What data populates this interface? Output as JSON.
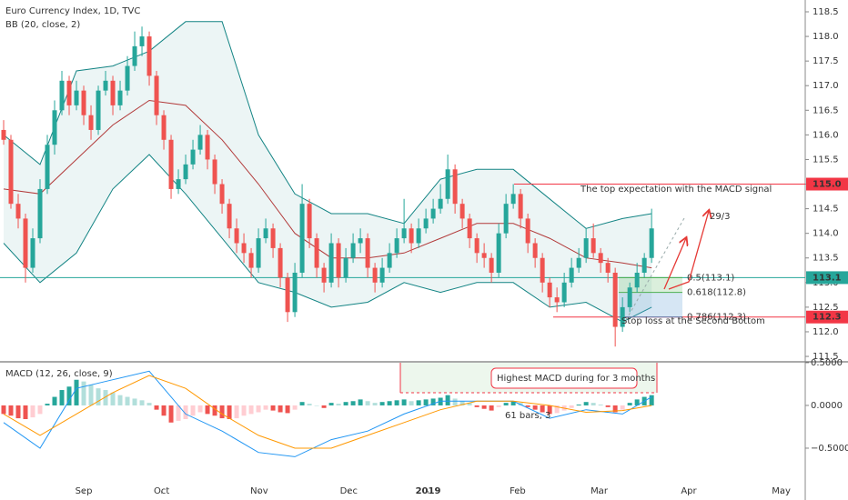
{
  "chart_data": [
    {
      "type": "candlestick",
      "title": "Euro Currency Index, 1D, TVC",
      "indicator": "BB (20, close, 2)",
      "up_color": "#26a69a",
      "down_color": "#ef5350",
      "xlim": [
        -0.5,
        110.1
      ],
      "xticks": [
        {
          "value": 11,
          "label": "Sep"
        },
        {
          "value": 21.7,
          "label": "Oct"
        },
        {
          "value": 35.1,
          "label": "Nov"
        },
        {
          "value": 47.4,
          "label": "Dec"
        },
        {
          "value": 58.3,
          "label": "2019"
        },
        {
          "value": 70.6,
          "label": "Feb"
        },
        {
          "value": 81.8,
          "label": "Mar"
        },
        {
          "value": 94.1,
          "label": "Apr"
        },
        {
          "value": 106.8,
          "label": "May"
        }
      ],
      "ylim": [
        111.39,
        118.74
      ],
      "yticks": [
        111.5,
        {
          "value": 112,
          "label": "112.0"
        },
        112.5,
        {
          "value": 113,
          "label": "113.0"
        },
        113.5,
        {
          "value": 114,
          "label": "114.0"
        },
        114.5,
        {
          "value": 115,
          "label": "115.0"
        },
        115.5,
        {
          "value": 116,
          "label": "116.0"
        },
        116.5,
        {
          "value": 117,
          "label": "117.0"
        },
        117.5,
        {
          "value": 118,
          "label": "118.0"
        },
        118.5
      ],
      "candles": [
        [
          116.1,
          116.3,
          115.8,
          115.9
        ],
        [
          115.9,
          116.0,
          114.5,
          114.6
        ],
        [
          114.6,
          114.8,
          114.1,
          114.3
        ],
        [
          114.3,
          114.4,
          113.0,
          113.3
        ],
        [
          113.3,
          114.1,
          113.2,
          113.9
        ],
        [
          113.9,
          115.1,
          113.8,
          114.9
        ],
        [
          114.9,
          116.0,
          114.8,
          115.8
        ],
        [
          115.8,
          116.7,
          115.6,
          116.5
        ],
        [
          116.5,
          117.3,
          116.4,
          117.1
        ],
        [
          117.1,
          117.2,
          116.4,
          116.6
        ],
        [
          116.6,
          117.1,
          116.5,
          116.9
        ],
        [
          116.9,
          117.0,
          116.2,
          116.4
        ],
        [
          116.4,
          116.6,
          115.9,
          116.1
        ],
        [
          116.1,
          117.0,
          116.0,
          116.9
        ],
        [
          116.9,
          117.3,
          116.8,
          117.1
        ],
        [
          117.1,
          117.2,
          116.4,
          116.6
        ],
        [
          116.6,
          117.1,
          116.5,
          116.9
        ],
        [
          116.9,
          117.6,
          116.8,
          117.4
        ],
        [
          117.4,
          118.1,
          117.3,
          117.8
        ],
        [
          117.8,
          118.2,
          117.6,
          118.0
        ],
        [
          118.0,
          118.1,
          117.0,
          117.2
        ],
        [
          117.2,
          117.3,
          116.2,
          116.4
        ],
        [
          116.4,
          116.5,
          115.7,
          115.9
        ],
        [
          115.9,
          116.0,
          114.7,
          114.9
        ],
        [
          114.9,
          115.3,
          114.8,
          115.1
        ],
        [
          115.1,
          115.6,
          115.0,
          115.4
        ],
        [
          115.4,
          115.9,
          115.3,
          115.7
        ],
        [
          115.7,
          116.2,
          115.6,
          116.0
        ],
        [
          116.0,
          116.1,
          115.3,
          115.5
        ],
        [
          115.5,
          115.6,
          114.8,
          115.0
        ],
        [
          115.0,
          115.1,
          114.4,
          114.6
        ],
        [
          114.6,
          114.7,
          113.9,
          114.1
        ],
        [
          114.1,
          114.3,
          113.6,
          113.8
        ],
        [
          113.8,
          114.0,
          113.4,
          113.6
        ],
        [
          113.6,
          113.7,
          113.1,
          113.3
        ],
        [
          113.3,
          114.1,
          113.2,
          113.9
        ],
        [
          113.9,
          114.3,
          113.8,
          114.1
        ],
        [
          114.1,
          114.2,
          113.5,
          113.7
        ],
        [
          113.7,
          113.8,
          112.9,
          113.1
        ],
        [
          113.1,
          113.2,
          112.2,
          112.4
        ],
        [
          112.4,
          113.4,
          112.3,
          113.2
        ],
        [
          113.2,
          115.0,
          113.1,
          114.6
        ],
        [
          114.6,
          114.7,
          113.7,
          113.9
        ],
        [
          113.9,
          114.0,
          113.1,
          113.3
        ],
        [
          113.3,
          113.4,
          112.8,
          113.0
        ],
        [
          113.0,
          114.0,
          112.9,
          113.8
        ],
        [
          113.8,
          113.9,
          112.9,
          113.1
        ],
        [
          113.1,
          113.7,
          113.0,
          113.5
        ],
        [
          113.5,
          114.0,
          113.4,
          113.8
        ],
        [
          113.8,
          114.1,
          113.6,
          113.9
        ],
        [
          113.9,
          114.0,
          113.1,
          113.3
        ],
        [
          113.3,
          113.4,
          112.8,
          113.0
        ],
        [
          113.0,
          113.5,
          112.9,
          113.3
        ],
        [
          113.3,
          113.8,
          113.2,
          113.6
        ],
        [
          113.6,
          114.1,
          113.5,
          113.9
        ],
        [
          113.9,
          114.7,
          113.8,
          114.1
        ],
        [
          114.1,
          114.2,
          113.6,
          113.8
        ],
        [
          113.8,
          114.3,
          113.7,
          114.1
        ],
        [
          114.1,
          114.5,
          114.0,
          114.3
        ],
        [
          114.3,
          114.7,
          114.2,
          114.5
        ],
        [
          114.5,
          115.0,
          114.4,
          114.7
        ],
        [
          114.7,
          115.6,
          114.6,
          115.3
        ],
        [
          115.3,
          115.4,
          114.4,
          114.6
        ],
        [
          114.6,
          114.7,
          114.1,
          114.3
        ],
        [
          114.3,
          114.4,
          113.7,
          113.9
        ],
        [
          113.9,
          114.0,
          113.4,
          113.6
        ],
        [
          113.6,
          113.8,
          113.3,
          113.5
        ],
        [
          113.5,
          113.6,
          113.0,
          113.2
        ],
        [
          113.2,
          114.2,
          113.1,
          114.0
        ],
        [
          114.0,
          114.8,
          113.9,
          114.6
        ],
        [
          114.6,
          115.0,
          114.5,
          114.8
        ],
        [
          114.8,
          114.9,
          114.1,
          114.3
        ],
        [
          114.3,
          114.4,
          113.6,
          113.8
        ],
        [
          113.8,
          113.9,
          113.3,
          113.5
        ],
        [
          113.5,
          113.6,
          112.8,
          113.0
        ],
        [
          113.0,
          113.1,
          112.5,
          112.7
        ],
        [
          112.7,
          112.9,
          112.4,
          112.6
        ],
        [
          112.6,
          113.2,
          112.5,
          113.0
        ],
        [
          113.0,
          113.5,
          112.9,
          113.3
        ],
        [
          113.3,
          113.7,
          113.2,
          113.5
        ],
        [
          113.5,
          114.1,
          113.4,
          113.9
        ],
        [
          113.9,
          114.2,
          113.5,
          113.6
        ],
        [
          113.6,
          113.7,
          113.2,
          113.4
        ],
        [
          113.4,
          113.5,
          113.0,
          113.2
        ],
        [
          113.2,
          113.3,
          111.7,
          112.1
        ],
        [
          112.1,
          112.7,
          112.0,
          112.5
        ],
        [
          112.5,
          113.0,
          112.4,
          112.9
        ],
        [
          112.9,
          113.4,
          112.8,
          113.2
        ],
        [
          113.2,
          113.6,
          113.1,
          113.5
        ],
        [
          113.5,
          114.5,
          113.4,
          114.1
        ]
      ],
      "bands": {
        "x": [
          0,
          5,
          10,
          15,
          20,
          25,
          30,
          35,
          40,
          45,
          50,
          55,
          60,
          65,
          70,
          75,
          80,
          85,
          89
        ],
        "upper": [
          116.0,
          115.4,
          117.3,
          117.4,
          117.7,
          118.3,
          118.3,
          116.0,
          114.8,
          114.4,
          114.4,
          114.2,
          115.1,
          115.3,
          115.3,
          114.7,
          114.1,
          114.3,
          114.4
        ],
        "middle": [
          114.9,
          114.8,
          115.5,
          116.2,
          116.7,
          116.6,
          115.9,
          115.0,
          114.0,
          113.5,
          113.5,
          113.6,
          113.9,
          114.2,
          114.2,
          113.9,
          113.5,
          113.4,
          113.3
        ],
        "lower": [
          113.8,
          113.0,
          113.6,
          114.9,
          115.6,
          114.8,
          113.9,
          113.0,
          112.8,
          112.5,
          112.6,
          113.0,
          112.8,
          113.0,
          113.0,
          112.5,
          112.6,
          112.2,
          112.5
        ],
        "band_color": "#138484",
        "middle_color": "#b23a3a"
      },
      "price_labels": [
        {
          "value": 115,
          "label": "115.0",
          "color": "#f23645"
        },
        {
          "value": 113.1,
          "label": "113.1",
          "color": "#26a69a"
        },
        {
          "value": 112.3,
          "label": "112.3",
          "color": "#f23645"
        }
      ],
      "fib": [
        {
          "value": 113.1,
          "label": "0.5(113.1)",
          "color": "#4caf50"
        },
        {
          "value": 112.8,
          "label": "0.618(112.8)",
          "color": "#4caf50"
        },
        {
          "value": 112.3,
          "label": "0.786(112.3)",
          "color": "#5b7fb0"
        }
      ],
      "annotations": {
        "top_expectation": "The top expectation with the MACD signal",
        "date_note": "29/3",
        "stop_loss": "Stop loss at the Second Bottom"
      }
    },
    {
      "type": "macd",
      "title": "MACD (12, 26, close, 9)",
      "ylim": [
        -1.0,
        0.51
      ],
      "yticks": [
        {
          "value": 0.5,
          "label": "0.5000"
        },
        {
          "value": 0,
          "label": "0.0000"
        },
        {
          "value": -0.5,
          "label": "−0.5000"
        }
      ],
      "hist_colors": [
        "#26a69a",
        "#b2dfdb",
        "#ef5350",
        "#ffcdd2"
      ],
      "histogram": [
        -0.1,
        -0.12,
        -0.15,
        -0.16,
        -0.14,
        -0.1,
        0.02,
        0.1,
        0.18,
        0.22,
        0.3,
        0.28,
        0.24,
        0.2,
        0.18,
        0.15,
        0.12,
        0.1,
        0.08,
        0.06,
        0.03,
        -0.05,
        -0.12,
        -0.2,
        -0.18,
        -0.16,
        -0.12,
        -0.08,
        -0.1,
        -0.12,
        -0.15,
        -0.16,
        -0.15,
        -0.12,
        -0.1,
        -0.08,
        -0.05,
        -0.06,
        -0.08,
        -0.09,
        -0.05,
        0.04,
        0.02,
        0.0,
        -0.03,
        0.03,
        0.02,
        0.04,
        0.05,
        0.07,
        0.05,
        0.03,
        0.04,
        0.05,
        0.06,
        0.07,
        0.05,
        0.06,
        0.07,
        0.08,
        0.09,
        0.12,
        0.08,
        0.05,
        0.03,
        -0.02,
        -0.04,
        -0.06,
        -0.02,
        0.03,
        0.05,
        0.03,
        -0.02,
        -0.05,
        -0.08,
        -0.1,
        -0.09,
        -0.06,
        -0.03,
        0.01,
        0.04,
        0.03,
        0.01,
        -0.02,
        -0.08,
        -0.05,
        0.03,
        0.07,
        0.1,
        0.12
      ],
      "lines": {
        "x": [
          0,
          5,
          10,
          15,
          20,
          25,
          30,
          35,
          40,
          45,
          50,
          55,
          60,
          65,
          70,
          75,
          80,
          85,
          89
        ],
        "macd": [
          -0.2,
          -0.5,
          0.2,
          0.3,
          0.4,
          -0.1,
          -0.3,
          -0.55,
          -0.6,
          -0.4,
          -0.3,
          -0.1,
          0.05,
          0.05,
          0.05,
          -0.15,
          -0.05,
          -0.1,
          0.1
        ],
        "signal": [
          -0.1,
          -0.35,
          -0.1,
          0.15,
          0.35,
          0.2,
          -0.1,
          -0.35,
          -0.5,
          -0.5,
          -0.35,
          -0.2,
          -0.05,
          0.05,
          0.05,
          0.0,
          -0.08,
          -0.06,
          0.0
        ],
        "macd_color": "#2196f3",
        "signal_color": "#ff9800"
      },
      "annotations": {
        "macd_note": "Highest MACD during for 3 months",
        "bars_note": "61 bars, 3"
      }
    }
  ]
}
